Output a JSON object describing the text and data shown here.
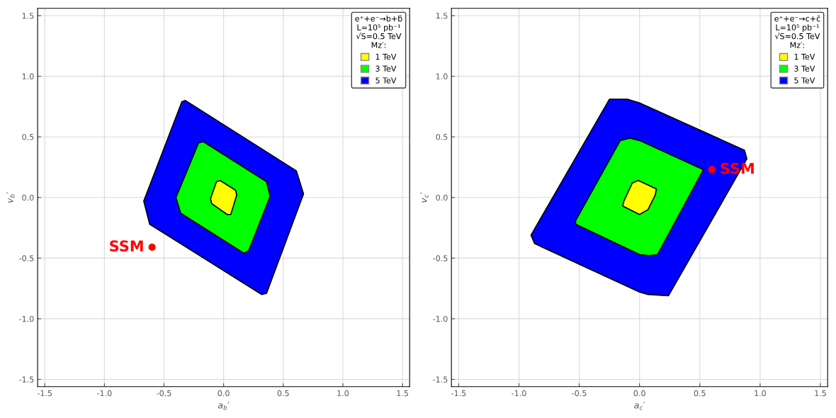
{
  "chart_data": [
    {
      "type": "area",
      "xlabel": "a$_{b}$′",
      "ylabel": "v$_{b}$′",
      "legend_title": "e⁺+e⁻→b+b̄\nL=10⁵ pb⁻¹\n√S=0.5 TeV\nMz′:",
      "legend": "top right",
      "grid": true,
      "xlim": [
        -1.56,
        1.56
      ],
      "ylim": [
        -1.56,
        1.56
      ],
      "xticks": [
        {
          "value": -1.5,
          "label": "-1.5"
        },
        {
          "value": -1.0,
          "label": "-1.0"
        },
        {
          "value": -0.5,
          "label": "-0.5"
        },
        {
          "value": 0,
          "label": "0.0"
        },
        {
          "value": 0.5,
          "label": "0.5"
        },
        {
          "value": 1.0,
          "label": "1.0"
        },
        {
          "value": 1.5,
          "label": "1.5"
        }
      ],
      "yticks": [
        {
          "value": -1.5,
          "label": "-1.5"
        },
        {
          "value": -1.0,
          "label": "-1.0"
        },
        {
          "value": -0.5,
          "label": "-0.5"
        },
        {
          "value": 0,
          "label": "0.0"
        },
        {
          "value": 0.5,
          "label": "0.5"
        },
        {
          "value": 1.0,
          "label": "1.0"
        },
        {
          "value": 1.5,
          "label": "1.5"
        }
      ],
      "series": [
        {
          "name": "5 TeV",
          "color": "#0000ff",
          "x": [
            -0.35,
            -0.32,
            0.61,
            0.67,
            0.36,
            0.32,
            -0.62,
            -0.67
          ],
          "values": [
            0.79,
            0.8,
            0.22,
            0.03,
            -0.79,
            -0.8,
            -0.22,
            -0.03
          ]
        },
        {
          "name": "3 TeV",
          "color": "#00ff00",
          "x": [
            -0.21,
            -0.17,
            0.36,
            0.39,
            0.21,
            0.17,
            -0.36,
            -0.4
          ],
          "values": [
            0.45,
            0.46,
            0.13,
            0.01,
            -0.44,
            -0.46,
            -0.13,
            0.0
          ]
        },
        {
          "name": "1 TeV",
          "color": "#ffff00",
          "x": [
            -0.06,
            -0.03,
            0.1,
            0.11,
            0.06,
            0.03,
            -0.1,
            -0.11
          ],
          "values": [
            0.13,
            0.14,
            0.06,
            0.02,
            -0.14,
            -0.14,
            -0.05,
            -0.01
          ]
        },
        {
          "name": "SSM",
          "type": "scatter",
          "color": "#ff0000",
          "marker": "circle",
          "x": [
            -0.6
          ],
          "values": [
            -0.41
          ]
        }
      ]
    },
    {
      "type": "area",
      "xlabel": "a$_{c}$′",
      "ylabel": "v$_{c}$′",
      "legend_title": "e⁺+e⁻→c+c̄\nL=10⁵ pb⁻¹\n√S=0.5 TeV\nMz′:",
      "legend": "top right",
      "grid": true,
      "xlim": [
        -1.56,
        1.56
      ],
      "ylim": [
        -1.56,
        1.56
      ],
      "xticks": [
        {
          "value": -1.5,
          "label": "-1.5"
        },
        {
          "value": -1.0,
          "label": "-1.0"
        },
        {
          "value": -0.5,
          "label": "-0.5"
        },
        {
          "value": 0,
          "label": "0.0"
        },
        {
          "value": 0.5,
          "label": "0.5"
        },
        {
          "value": 1.0,
          "label": "1.0"
        },
        {
          "value": 1.5,
          "label": "1.5"
        }
      ],
      "yticks": [
        {
          "value": -1.5,
          "label": "-1.5"
        },
        {
          "value": -1.0,
          "label": "-1.0"
        },
        {
          "value": -0.5,
          "label": "-0.5"
        },
        {
          "value": 0,
          "label": "0.0"
        },
        {
          "value": 0.5,
          "label": "0.5"
        },
        {
          "value": 1.0,
          "label": "1.0"
        },
        {
          "value": 1.5,
          "label": "1.5"
        }
      ],
      "series": [
        {
          "name": "5 TeV",
          "color": "#0000ff",
          "x": [
            -0.25,
            -0.1,
            0.0,
            0.87,
            0.89,
            0.24,
            0.07,
            0.0,
            -0.87,
            -0.9
          ],
          "values": [
            0.81,
            0.81,
            0.78,
            0.39,
            0.32,
            -0.81,
            -0.8,
            -0.78,
            -0.38,
            -0.31
          ]
        },
        {
          "name": "3 TeV",
          "color": "#00ff00",
          "x": [
            -0.16,
            -0.08,
            0.0,
            0.53,
            0.15,
            0.08,
            0.0,
            -0.53,
            -0.53
          ],
          "values": [
            0.47,
            0.49,
            0.47,
            0.23,
            -0.47,
            -0.48,
            -0.47,
            -0.22,
            -0.19
          ]
        },
        {
          "name": "1 TeV",
          "color": "#ffff00",
          "x": [
            -0.06,
            -0.01,
            0.14,
            0.13,
            0.07,
            0.0,
            -0.14,
            -0.13
          ],
          "values": [
            0.12,
            0.14,
            0.07,
            0.02,
            -0.1,
            -0.14,
            -0.07,
            -0.03
          ]
        },
        {
          "name": "SSM",
          "type": "scatter",
          "color": "#ff0000",
          "marker": "circle",
          "x": [
            0.6
          ],
          "values": [
            0.23
          ]
        }
      ]
    }
  ]
}
